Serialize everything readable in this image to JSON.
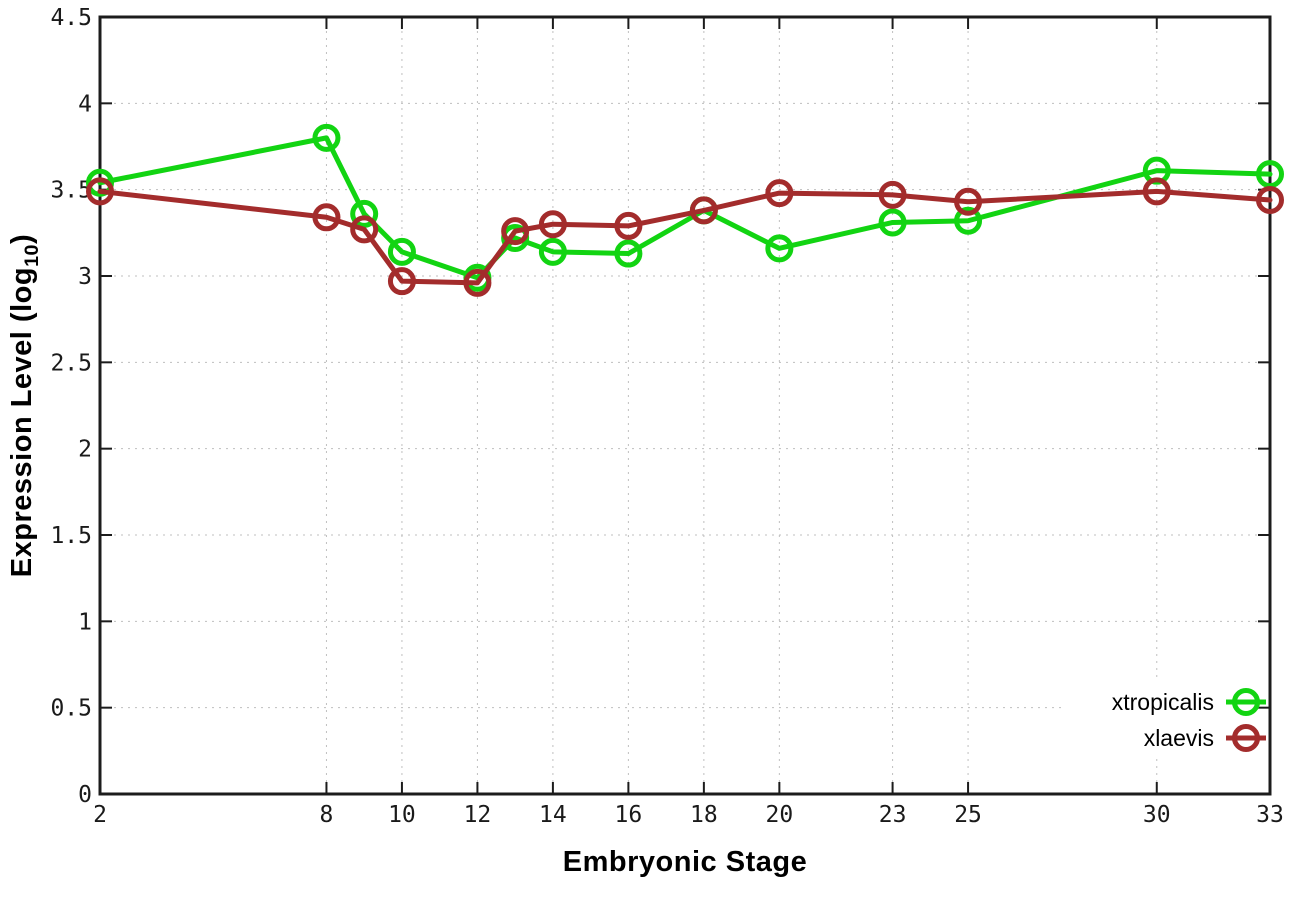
{
  "figure": {
    "background": "#ffffff",
    "border_color": "#1c1c1c",
    "grid_color": "#bfbfbf",
    "tick_label_color": "#1a1a1a"
  },
  "chart_data": {
    "type": "line",
    "title": "",
    "xlabel": "Embryonic Stage",
    "ylabel": "Expression Level (log10)",
    "ylabel_parts": {
      "main": "Expression Level (log",
      "sub": "10",
      "close": ")"
    },
    "xlim": [
      2,
      33
    ],
    "ylim": [
      0,
      4.5
    ],
    "x_ticks": [
      2,
      8,
      10,
      12,
      14,
      16,
      18,
      20,
      23,
      25,
      30,
      33
    ],
    "y_ticks": [
      "0",
      "0.5",
      "1",
      "1.5",
      "2",
      "2.5",
      "3",
      "3.5",
      "4",
      "4.5"
    ],
    "grid": true,
    "marker": "open-circle",
    "legend_position": "bottom-right",
    "x": [
      2,
      8,
      9,
      10,
      12,
      13,
      14,
      16,
      18,
      20,
      23,
      25,
      30,
      33
    ],
    "series": [
      {
        "name": "xtropicalis",
        "color": "#12d412",
        "values": [
          3.54,
          3.8,
          3.36,
          3.14,
          2.99,
          3.22,
          3.14,
          3.13,
          3.38,
          3.16,
          3.31,
          3.32,
          3.61,
          3.59
        ]
      },
      {
        "name": "xlaevis",
        "color": "#a32c2c",
        "values": [
          3.49,
          3.34,
          3.27,
          2.97,
          2.96,
          3.26,
          3.3,
          3.29,
          3.38,
          3.48,
          3.47,
          3.43,
          3.49,
          3.44
        ]
      }
    ]
  }
}
